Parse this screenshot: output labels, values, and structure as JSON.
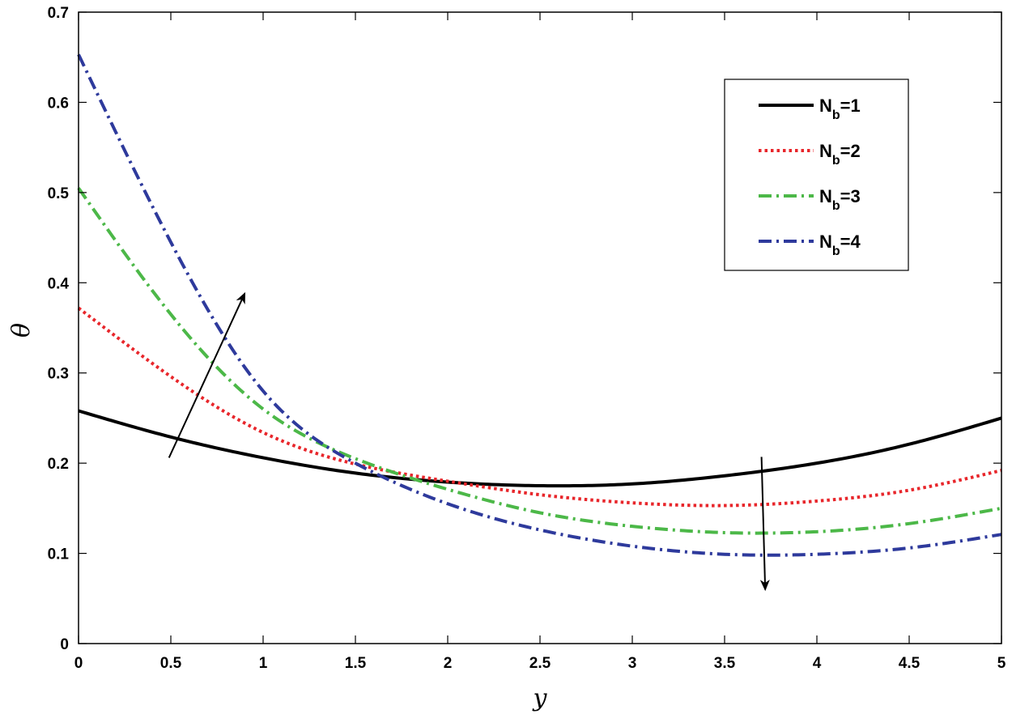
{
  "chart_data": {
    "type": "line",
    "xlabel": "y",
    "ylabel": "θ",
    "xlim": [
      0,
      5
    ],
    "ylim": [
      0,
      0.7
    ],
    "xticks": [
      "0",
      "0.5",
      "1",
      "1.5",
      "2",
      "2.5",
      "3",
      "3.5",
      "4",
      "4.5",
      "5"
    ],
    "yticks": [
      "0",
      "0.1",
      "0.2",
      "0.3",
      "0.4",
      "0.5",
      "0.6",
      "0.7"
    ],
    "grid": false,
    "legend_position": "top-right",
    "x": [
      0,
      0.5,
      1,
      1.5,
      2,
      2.5,
      3,
      3.5,
      4,
      4.5,
      5
    ],
    "series": [
      {
        "name": "N_b=1",
        "label_main": "N",
        "label_sub": "b",
        "label_value": "=1",
        "color": "#000000",
        "style": "solid",
        "values": [
          0.258,
          0.229,
          0.206,
          0.189,
          0.179,
          0.175,
          0.177,
          0.186,
          0.2,
          0.221,
          0.25
        ]
      },
      {
        "name": "N_b=2",
        "label_main": "N",
        "label_sub": "b",
        "label_value": "=2",
        "color": "#e8262b",
        "style": "dotted",
        "values": [
          0.372,
          0.296,
          0.234,
          0.199,
          0.18,
          0.165,
          0.156,
          0.153,
          0.158,
          0.17,
          0.192
        ]
      },
      {
        "name": "N_b=3",
        "label_main": "N",
        "label_sub": "b",
        "label_value": "=3",
        "color": "#4cb848",
        "style": "dashdot",
        "values": [
          0.505,
          0.365,
          0.26,
          0.205,
          0.171,
          0.145,
          0.13,
          0.123,
          0.124,
          0.133,
          0.15
        ]
      },
      {
        "name": "N_b=4",
        "label_main": "N",
        "label_sub": "b",
        "label_value": "=4",
        "color": "#2e3a9c",
        "style": "dashdot",
        "values": [
          0.653,
          0.445,
          0.28,
          0.2,
          0.155,
          0.126,
          0.108,
          0.099,
          0.099,
          0.106,
          0.121
        ]
      }
    ],
    "annotations": [
      {
        "type": "arrow",
        "from": [
          0.49,
          0.206
        ],
        "to": [
          0.9,
          0.388
        ],
        "meaning": "increasing N_b"
      },
      {
        "type": "arrow",
        "from": [
          3.7,
          0.207
        ],
        "to": [
          3.72,
          0.06
        ],
        "meaning": "increasing N_b"
      }
    ]
  }
}
